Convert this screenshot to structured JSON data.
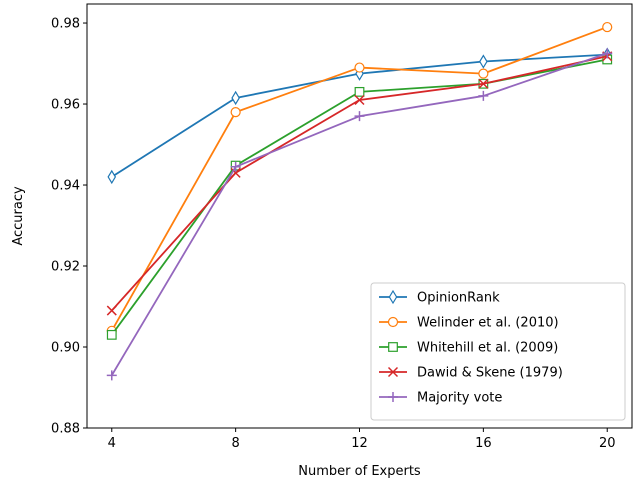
{
  "chart_data": {
    "type": "line",
    "title": "",
    "xlabel": "Number of Experts",
    "ylabel": "Accuracy",
    "x": [
      4,
      8,
      12,
      16,
      20
    ],
    "xticks": [
      "4",
      "8",
      "12",
      "16",
      "20"
    ],
    "yticks": [
      "0.88",
      "0.90",
      "0.92",
      "0.94",
      "0.96",
      "0.98"
    ],
    "xlim": [
      3.2,
      20.8
    ],
    "ylim": [
      0.88,
      0.9847
    ],
    "grid": false,
    "legend_position": "lower-right",
    "series": [
      {
        "name": "OpinionRank",
        "values": [
          0.942,
          0.9615,
          0.9675,
          0.9705,
          0.9722
        ],
        "color": "#1f77b4",
        "marker": "thin_diamond"
      },
      {
        "name": "Welinder et al. (2010)",
        "values": [
          0.904,
          0.958,
          0.969,
          0.9675,
          0.979
        ],
        "color": "#ff7f0e",
        "marker": "circle"
      },
      {
        "name": "Whitehill et al. (2009)",
        "values": [
          0.903,
          0.9448,
          0.963,
          0.965,
          0.971
        ],
        "color": "#2ca02c",
        "marker": "square"
      },
      {
        "name": "Dawid & Skene (1979)",
        "values": [
          0.909,
          0.943,
          0.961,
          0.965,
          0.9718
        ],
        "color": "#d62728",
        "marker": "x"
      },
      {
        "name": "Majority vote",
        "values": [
          0.893,
          0.9445,
          0.957,
          0.962,
          0.9725
        ],
        "color": "#9467bd",
        "marker": "plus"
      }
    ]
  }
}
